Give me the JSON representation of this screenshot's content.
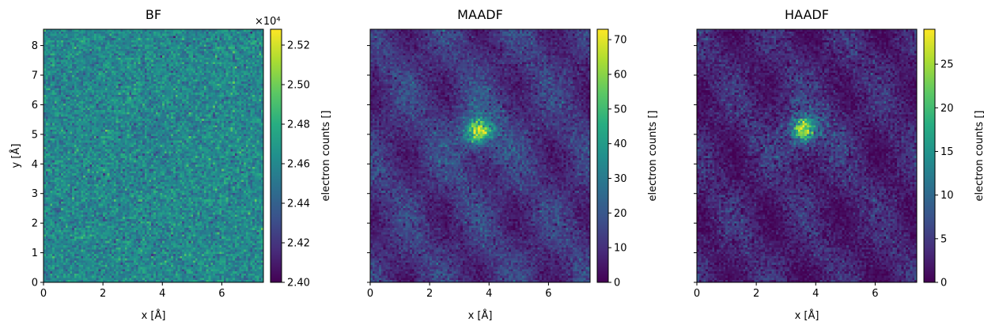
{
  "chart_data": [
    {
      "type": "heatmap",
      "title": "BF",
      "xlabel": "x [Å]",
      "ylabel": "y [Å]",
      "xlim": [
        0,
        7.4
      ],
      "ylim": [
        0,
        8.55
      ],
      "x_ticks": [
        0,
        2,
        4,
        6
      ],
      "y_ticks": [
        0,
        1,
        2,
        3,
        4,
        5,
        6,
        7,
        8
      ],
      "x_tick_labels": [
        "0",
        "2",
        "4",
        "6"
      ],
      "y_tick_labels": [
        "0",
        "1",
        "2",
        "3",
        "4",
        "5",
        "6",
        "7",
        "8"
      ],
      "show_y_tick_labels": true,
      "colormap": "viridis",
      "colorbar": {
        "label": "electron counts []",
        "vmin": 24000,
        "vmax": 25280,
        "ticks": [
          24000,
          24200,
          24400,
          24600,
          24800,
          25000,
          25200
        ],
        "tick_labels": [
          "2.40",
          "2.42",
          "2.44",
          "2.46",
          "2.48",
          "2.50",
          "2.52"
        ],
        "offset_label": "×10⁴"
      },
      "features": {
        "background": 24600,
        "noise": 115,
        "center": [
          3.6,
          5.1
        ],
        "center_delta": -60,
        "periodic_amplitude": 0
      }
    },
    {
      "type": "heatmap",
      "title": "MAADF",
      "xlabel": "x [Å]",
      "ylabel": "",
      "xlim": [
        0,
        7.4
      ],
      "ylim": [
        0,
        8.55
      ],
      "x_ticks": [
        0,
        2,
        4,
        6
      ],
      "y_ticks": [
        0,
        1,
        2,
        3,
        4,
        5,
        6,
        7,
        8
      ],
      "x_tick_labels": [
        "0",
        "2",
        "4",
        "6"
      ],
      "y_tick_labels": [],
      "show_y_tick_labels": false,
      "colormap": "viridis",
      "colorbar": {
        "label": "electron counts []",
        "vmin": 0,
        "vmax": 73,
        "ticks": [
          0,
          10,
          20,
          30,
          40,
          50,
          60,
          70
        ],
        "tick_labels": [
          "0",
          "10",
          "20",
          "30",
          "40",
          "50",
          "60",
          "70"
        ],
        "offset_label": ""
      },
      "features": {
        "background": 11,
        "noise": 4,
        "center": [
          3.65,
          5.1
        ],
        "center_peak": 62,
        "center_sigma": 0.3,
        "periodic_amplitude": 4
      }
    },
    {
      "type": "heatmap",
      "title": "HAADF",
      "xlabel": "x [Å]",
      "ylabel": "",
      "xlim": [
        0,
        7.4
      ],
      "ylim": [
        0,
        8.55
      ],
      "x_ticks": [
        0,
        2,
        4,
        6
      ],
      "y_ticks": [
        0,
        1,
        2,
        3,
        4,
        5,
        6,
        7,
        8
      ],
      "x_tick_labels": [
        "0",
        "2",
        "4",
        "6"
      ],
      "y_tick_labels": [],
      "show_y_tick_labels": false,
      "colormap": "viridis",
      "colorbar": {
        "label": "electron counts []",
        "vmin": 0,
        "vmax": 29,
        "ticks": [
          0,
          5,
          10,
          15,
          20,
          25
        ],
        "tick_labels": [
          "0",
          "5",
          "10",
          "15",
          "20",
          "25"
        ],
        "offset_label": ""
      },
      "features": {
        "background": 2.8,
        "noise": 1.6,
        "center": [
          3.6,
          5.15
        ],
        "center_peak": 24,
        "center_sigma": 0.28,
        "periodic_amplitude": 1.3
      }
    }
  ]
}
